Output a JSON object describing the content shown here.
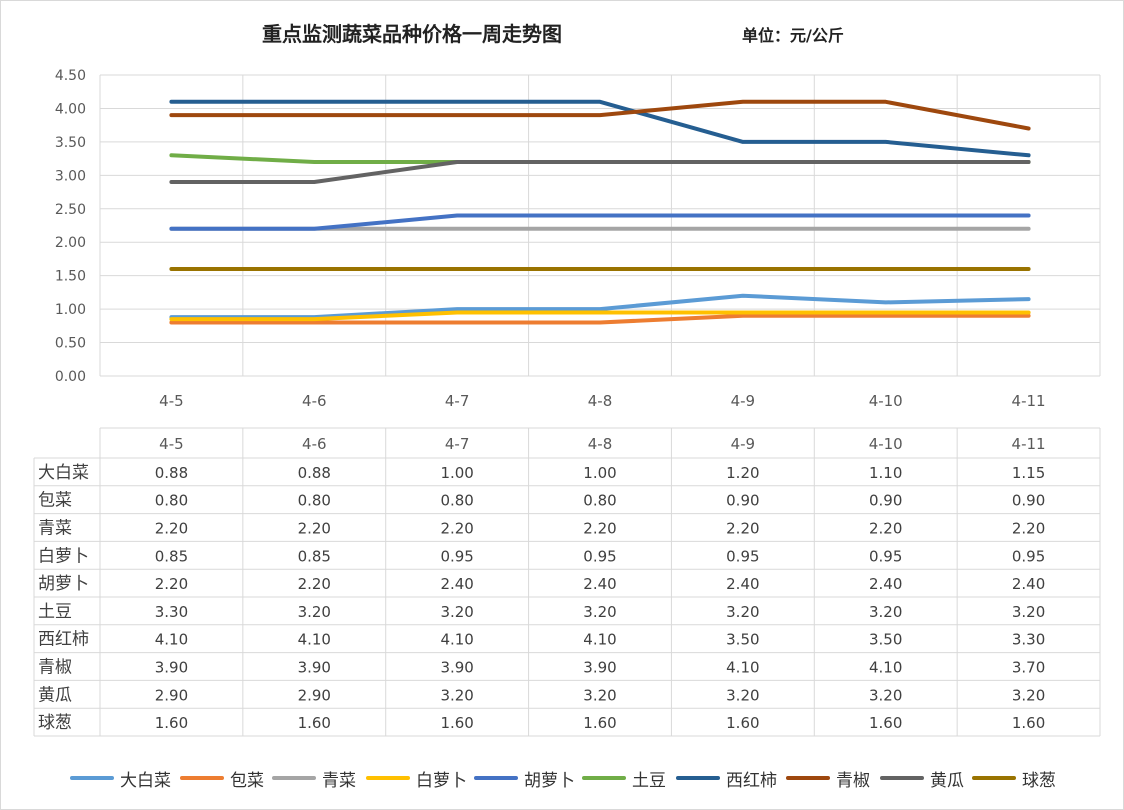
{
  "chart_data": {
    "type": "line",
    "title": "重点监测蔬菜品种价格一周走势图",
    "unit": "单位：元/公斤",
    "categories": [
      "4-5",
      "4-6",
      "4-7",
      "4-8",
      "4-9",
      "4-10",
      "4-11"
    ],
    "ylim": [
      0,
      4.5
    ],
    "yticks": [
      "0.00",
      "0.50",
      "1.00",
      "1.50",
      "2.00",
      "2.50",
      "3.00",
      "3.50",
      "4.00",
      "4.50"
    ],
    "grid": true,
    "legend_position": "bottom",
    "series": [
      {
        "name": "大白菜",
        "color": "#5b9bd5",
        "values": [
          0.88,
          0.88,
          1.0,
          1.0,
          1.2,
          1.1,
          1.15
        ],
        "labels": [
          "0.88",
          "0.88",
          "1.00",
          "1.00",
          "1.20",
          "1.10",
          "1.15"
        ]
      },
      {
        "name": "包菜",
        "color": "#ed7d31",
        "values": [
          0.8,
          0.8,
          0.8,
          0.8,
          0.9,
          0.9,
          0.9
        ],
        "labels": [
          "0.80",
          "0.80",
          "0.80",
          "0.80",
          "0.90",
          "0.90",
          "0.90"
        ]
      },
      {
        "name": "青菜",
        "color": "#a5a5a5",
        "values": [
          2.2,
          2.2,
          2.2,
          2.2,
          2.2,
          2.2,
          2.2
        ],
        "labels": [
          "2.20",
          "2.20",
          "2.20",
          "2.20",
          "2.20",
          "2.20",
          "2.20"
        ]
      },
      {
        "name": "白萝卜",
        "color": "#ffc000",
        "values": [
          0.85,
          0.85,
          0.95,
          0.95,
          0.95,
          0.95,
          0.95
        ],
        "labels": [
          "0.85",
          "0.85",
          "0.95",
          "0.95",
          "0.95",
          "0.95",
          "0.95"
        ]
      },
      {
        "name": "胡萝卜",
        "color": "#4472c4",
        "values": [
          2.2,
          2.2,
          2.4,
          2.4,
          2.4,
          2.4,
          2.4
        ],
        "labels": [
          "2.20",
          "2.20",
          "2.40",
          "2.40",
          "2.40",
          "2.40",
          "2.40"
        ]
      },
      {
        "name": "土豆",
        "color": "#70ad47",
        "values": [
          3.3,
          3.2,
          3.2,
          3.2,
          3.2,
          3.2,
          3.2
        ],
        "labels": [
          "3.30",
          "3.20",
          "3.20",
          "3.20",
          "3.20",
          "3.20",
          "3.20"
        ]
      },
      {
        "name": "西红柿",
        "color": "#255e91",
        "values": [
          4.1,
          4.1,
          4.1,
          4.1,
          3.5,
          3.5,
          3.3
        ],
        "labels": [
          "4.10",
          "4.10",
          "4.10",
          "4.10",
          "3.50",
          "3.50",
          "3.30"
        ]
      },
      {
        "name": "青椒",
        "color": "#9e480e",
        "values": [
          3.9,
          3.9,
          3.9,
          3.9,
          4.1,
          4.1,
          3.7
        ],
        "labels": [
          "3.90",
          "3.90",
          "3.90",
          "3.90",
          "4.10",
          "4.10",
          "3.70"
        ]
      },
      {
        "name": "黄瓜",
        "color": "#636363",
        "values": [
          2.9,
          2.9,
          3.2,
          3.2,
          3.2,
          3.2,
          3.2
        ],
        "labels": [
          "2.90",
          "2.90",
          "3.20",
          "3.20",
          "3.20",
          "3.20",
          "3.20"
        ]
      },
      {
        "name": "球葱",
        "color": "#997300",
        "values": [
          1.6,
          1.6,
          1.6,
          1.6,
          1.6,
          1.6,
          1.6
        ],
        "labels": [
          "1.60",
          "1.60",
          "1.60",
          "1.60",
          "1.60",
          "1.60",
          "1.60"
        ]
      }
    ]
  }
}
